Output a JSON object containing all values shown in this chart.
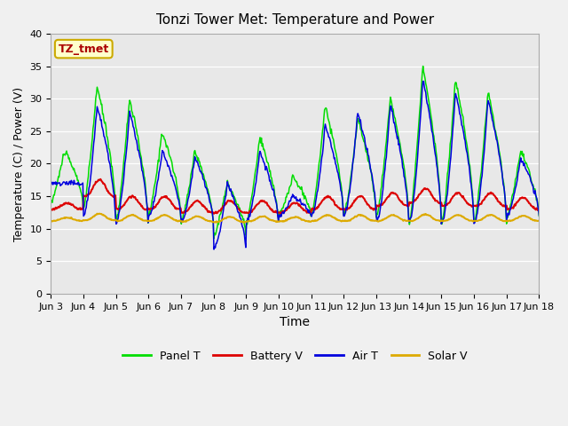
{
  "title": "Tonzi Tower Met: Temperature and Power",
  "xlabel": "Time",
  "ylabel": "Temperature (C) / Power (V)",
  "ylim": [
    0,
    40
  ],
  "yticks": [
    0,
    5,
    10,
    15,
    20,
    25,
    30,
    35,
    40
  ],
  "annotation": "TZ_tmet",
  "fig_bg_color": "#f0f0f0",
  "plot_bg_color": "#e8e8e8",
  "legend_entries": [
    "Panel T",
    "Battery V",
    "Air T",
    "Solar V"
  ],
  "legend_colors": [
    "#00dd00",
    "#dd0000",
    "#0000dd",
    "#ddaa00"
  ],
  "line_colors": {
    "panel_t": "#00dd00",
    "battery_v": "#dd0000",
    "air_t": "#0000dd",
    "solar_v": "#ddaa00"
  },
  "xtick_labels": [
    "Jun 3",
    "Jun 4",
    "Jun 5",
    "Jun 6",
    "Jun 7",
    "Jun 8",
    "Jun 9",
    "Jun 10",
    "Jun 11",
    "Jun 12",
    "Jun 13",
    "Jun 14",
    "Jun 15",
    "Jun 16",
    "Jun 17",
    "Jun 18"
  ],
  "num_days": 15,
  "points_per_day": 48,
  "day_params": [
    [
      14,
      22,
      17,
      17,
      13,
      0.9,
      11.2,
      0.5
    ],
    [
      13,
      32,
      12,
      29,
      15,
      2.5,
      11.3,
      1.0
    ],
    [
      11,
      30,
      11,
      28,
      13,
      2.0,
      11.2,
      0.9
    ],
    [
      12,
      25,
      12,
      22,
      13,
      2.0,
      11.2,
      0.9
    ],
    [
      11,
      22,
      11,
      21,
      12.5,
      1.8,
      11.1,
      0.8
    ],
    [
      9,
      17,
      7,
      17,
      12.5,
      1.8,
      11.0,
      0.8
    ],
    [
      11,
      24,
      11,
      22,
      12.5,
      1.8,
      11.1,
      0.8
    ],
    [
      12,
      18,
      12,
      15,
      12.5,
      1.5,
      11.1,
      0.7
    ],
    [
      12,
      29,
      12,
      26,
      13,
      2.0,
      11.2,
      0.9
    ],
    [
      12,
      27,
      12,
      28,
      13,
      2.0,
      11.2,
      0.9
    ],
    [
      12,
      30,
      11,
      29,
      13.5,
      2.0,
      11.2,
      0.9
    ],
    [
      11,
      35,
      11,
      33,
      14,
      2.2,
      11.2,
      1.0
    ],
    [
      11,
      33,
      11,
      31,
      13.5,
      2.0,
      11.2,
      0.9
    ],
    [
      11,
      31,
      11,
      30,
      13.5,
      2.0,
      11.2,
      0.9
    ],
    [
      12,
      22,
      12,
      21,
      13,
      1.8,
      11.2,
      0.8
    ]
  ]
}
